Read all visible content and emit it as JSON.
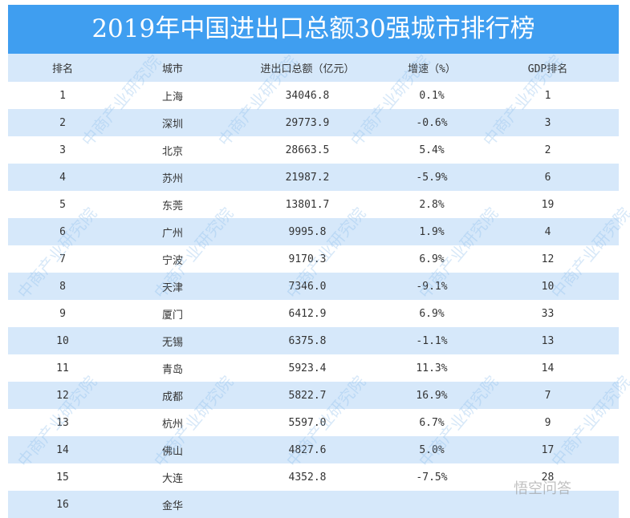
{
  "title": "2019年中国进出口总额30强城市排行榜",
  "columns": [
    "排名",
    "城市",
    "进出口总额（亿元）",
    "增速（%）",
    "GDP排名"
  ],
  "rows": [
    [
      "1",
      "上海",
      "34046.8",
      "0.1%",
      "1"
    ],
    [
      "2",
      "深圳",
      "29773.9",
      "-0.6%",
      "3"
    ],
    [
      "3",
      "北京",
      "28663.5",
      "5.4%",
      "2"
    ],
    [
      "4",
      "苏州",
      "21987.2",
      "-5.9%",
      "6"
    ],
    [
      "5",
      "东莞",
      "13801.7",
      "2.8%",
      "19"
    ],
    [
      "6",
      "广州",
      "9995.8",
      "1.9%",
      "4"
    ],
    [
      "7",
      "宁波",
      "9170.3",
      "6.9%",
      "12"
    ],
    [
      "8",
      "天津",
      "7346.0",
      "-9.1%",
      "10"
    ],
    [
      "9",
      "厦门",
      "6412.9",
      "6.9%",
      "33"
    ],
    [
      "10",
      "无锡",
      "6375.8",
      "-1.1%",
      "13"
    ],
    [
      "11",
      "青岛",
      "5923.4",
      "11.3%",
      "14"
    ],
    [
      "12",
      "成都",
      "5822.7",
      "16.9%",
      "7"
    ],
    [
      "13",
      "杭州",
      "5597.0",
      "6.7%",
      "9"
    ],
    [
      "14",
      "佛山",
      "4827.6",
      "5.0%",
      "17"
    ],
    [
      "15",
      "大连",
      "4352.8",
      "-7.5%",
      "28"
    ],
    [
      "16",
      "金华",
      "",
      "",
      ""
    ]
  ],
  "watermark": "中商产业研究院",
  "corner_watermark": "悟空问答",
  "colors": {
    "title_bg": "#3f9ef0",
    "alt_row": "#d6e8fa"
  }
}
